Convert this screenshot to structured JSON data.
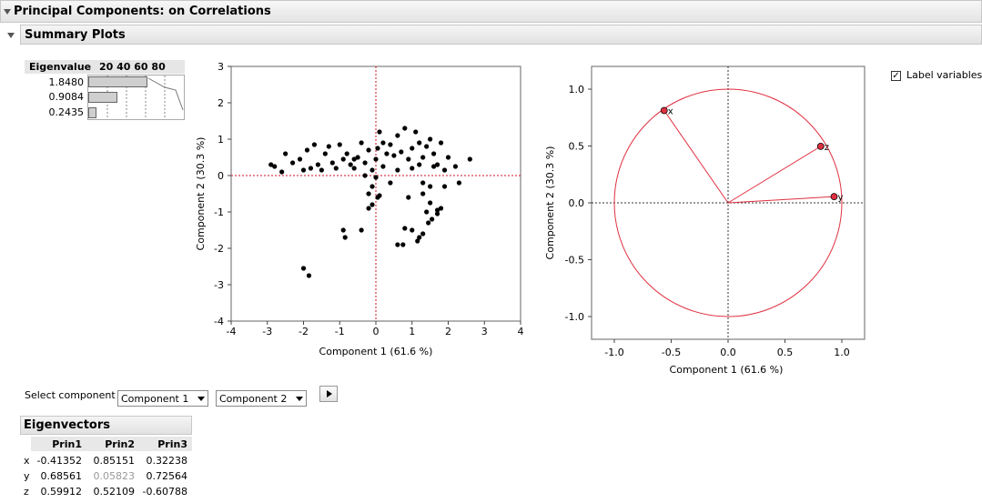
{
  "headers": {
    "main": "Principal Components: on Correlations",
    "sub": "Summary Plots"
  },
  "eigen_table": {
    "col_label": "Eigenvalue",
    "scale_label": "20  40  60  80",
    "values": [
      "1.8480",
      "0.9084",
      "0.2435"
    ],
    "percents": [
      61.6,
      30.3,
      8.1
    ]
  },
  "score_plot": {
    "xlabel": "Component 1  (61.6 %)",
    "ylabel": "Component 2  (30.3 %)",
    "x_ticks": [
      "-4",
      "-3",
      "-2",
      "-1",
      "0",
      "1",
      "2",
      "3",
      "4"
    ],
    "y_ticks": [
      "3",
      "2",
      "1",
      "0",
      "-1",
      "-2",
      "-3",
      "-4"
    ]
  },
  "loading_plot": {
    "xlabel": "Component 1  (61.6 %)",
    "ylabel": "Component 2  (30.3 %)",
    "x_ticks": [
      "-1.0",
      "-0.5",
      "0.0",
      "0.5",
      "1.0"
    ],
    "y_ticks": [
      "1.0",
      "0.5",
      "0.0",
      "-0.5",
      "-1.0"
    ],
    "variables": [
      "x",
      "z",
      "y"
    ],
    "accent_color": "#e03040"
  },
  "controls": {
    "select_label": "Select component",
    "comp_x": "Component 1",
    "comp_y": "Component 2",
    "label_variables": "Label variables",
    "label_variables_checked": true
  },
  "eigenvectors": {
    "title": "Eigenvectors",
    "columns": [
      "Prin1",
      "Prin2",
      "Prin3"
    ],
    "rows": [
      {
        "name": "x",
        "values": [
          "-0.41352",
          "0.85151",
          "0.32238"
        ]
      },
      {
        "name": "y",
        "values": [
          "0.68561",
          "0.05823",
          "0.72564"
        ]
      },
      {
        "name": "z",
        "values": [
          "0.59912",
          "0.52109",
          "-0.60788"
        ]
      }
    ]
  },
  "chart_data": [
    {
      "type": "scatter",
      "xlabel": "Component 1  (61.6 %)",
      "ylabel": "Component 2  (30.3 %)",
      "xlim": [
        -4,
        4
      ],
      "ylim": [
        -4,
        3
      ],
      "points": [
        [
          -2.9,
          0.3
        ],
        [
          -2.8,
          0.25
        ],
        [
          -2.6,
          0.1
        ],
        [
          -2.5,
          0.6
        ],
        [
          -2.3,
          0.35
        ],
        [
          -2.1,
          0.45
        ],
        [
          -2.0,
          0.15
        ],
        [
          -1.9,
          0.7
        ],
        [
          -1.8,
          0.2
        ],
        [
          -1.7,
          0.85
        ],
        [
          -1.6,
          0.3
        ],
        [
          -1.5,
          0.15
        ],
        [
          -1.4,
          0.6
        ],
        [
          -1.3,
          0.8
        ],
        [
          -1.2,
          0.35
        ],
        [
          -1.1,
          0.2
        ],
        [
          -1.0,
          0.85
        ],
        [
          -0.9,
          0.45
        ],
        [
          -0.8,
          0.6
        ],
        [
          -0.7,
          0.3
        ],
        [
          -0.6,
          0.2
        ],
        [
          -0.5,
          0.5
        ],
        [
          -0.4,
          0.9
        ],
        [
          -0.3,
          0.35
        ],
        [
          -0.2,
          0.7
        ],
        [
          -0.1,
          0.15
        ],
        [
          0.0,
          0.45
        ],
        [
          0.05,
          0.75
        ],
        [
          0.1,
          1.2
        ],
        [
          0.2,
          0.9
        ],
        [
          0.3,
          0.6
        ],
        [
          0.4,
          0.85
        ],
        [
          0.5,
          0.55
        ],
        [
          0.6,
          1.1
        ],
        [
          0.7,
          0.65
        ],
        [
          0.8,
          1.3
        ],
        [
          0.9,
          0.45
        ],
        [
          1.0,
          0.75
        ],
        [
          1.1,
          1.2
        ],
        [
          1.2,
          0.9
        ],
        [
          1.3,
          0.5
        ],
        [
          1.4,
          0.8
        ],
        [
          1.5,
          1.0
        ],
        [
          1.6,
          0.6
        ],
        [
          1.7,
          0.3
        ],
        [
          1.8,
          0.9
        ],
        [
          1.9,
          0.15
        ],
        [
          2.0,
          0.5
        ],
        [
          2.2,
          0.25
        ],
        [
          2.6,
          0.45
        ],
        [
          -0.3,
          0.0
        ],
        [
          -0.1,
          -0.3
        ],
        [
          0.0,
          -0.05
        ],
        [
          -0.2,
          -0.5
        ],
        [
          0.05,
          -0.6
        ],
        [
          -0.1,
          -0.8
        ],
        [
          0.1,
          -0.55
        ],
        [
          -0.2,
          -0.9
        ],
        [
          0.9,
          -0.6
        ],
        [
          1.3,
          -0.5
        ],
        [
          1.5,
          -0.75
        ],
        [
          1.7,
          -0.95
        ],
        [
          1.4,
          -1.0
        ],
        [
          1.55,
          -1.2
        ],
        [
          1.8,
          -0.9
        ],
        [
          1.3,
          -0.2
        ],
        [
          1.6,
          0.25
        ],
        [
          1.9,
          -0.3
        ],
        [
          1.5,
          -0.3
        ],
        [
          1.2,
          0.3
        ],
        [
          -0.9,
          -1.5
        ],
        [
          -0.85,
          -1.7
        ],
        [
          -0.4,
          -1.5
        ],
        [
          0.6,
          -1.9
        ],
        [
          0.75,
          -1.9
        ],
        [
          0.8,
          -1.45
        ],
        [
          1.0,
          -1.5
        ],
        [
          1.15,
          -1.8
        ],
        [
          1.3,
          -1.6
        ],
        [
          1.45,
          -1.3
        ],
        [
          -2.0,
          -2.55
        ],
        [
          -1.85,
          -2.75
        ],
        [
          1.2,
          -1.7
        ],
        [
          1.7,
          -1.05
        ],
        [
          0.4,
          -0.2
        ],
        [
          -0.6,
          0.45
        ],
        [
          0.2,
          0.25
        ],
        [
          0.6,
          0.15
        ],
        [
          2.3,
          -0.2
        ],
        [
          1.0,
          0.2
        ]
      ]
    },
    {
      "type": "scatter",
      "xlabel": "Component 1  (61.6 %)",
      "ylabel": "Component 2  (30.3 %)",
      "xlim": [
        -1.2,
        1.2
      ],
      "ylim": [
        -1.2,
        1.2
      ],
      "series": [
        {
          "name": "x",
          "x": -0.562,
          "y": 0.812
        },
        {
          "name": "z",
          "x": 0.814,
          "y": 0.497
        },
        {
          "name": "y",
          "x": 0.932,
          "y": 0.055
        }
      ]
    }
  ]
}
